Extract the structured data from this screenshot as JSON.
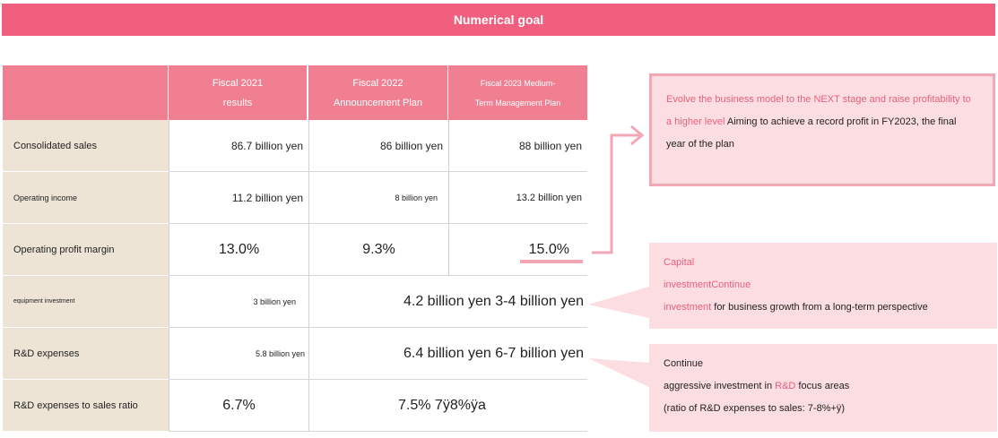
{
  "banner": {
    "title": "Numerical goal"
  },
  "table": {
    "headers": [
      {
        "line1": "Fiscal 2021",
        "line2": "results"
      },
      {
        "line1": "Fiscal 2022",
        "line2": "Announcement Plan"
      },
      {
        "line1": "Fiscal 2023 Medium-",
        "line2": "Term Management Plan"
      }
    ],
    "rows": [
      {
        "label": "Consolidated sales",
        "v2021": "86.7 billion yen",
        "v2022": "86 billion yen",
        "v2023": "88 billion yen"
      },
      {
        "label": "Operating income",
        "v2021": "11.2 billion yen",
        "v2022": "8 billion yen",
        "v2023": "13.2 billion yen"
      },
      {
        "label": "Operating profit margin",
        "v2021": "13.0%",
        "v2022": "9.3%",
        "v2023": "15.0%"
      },
      {
        "label": "equipment investment",
        "v2021": "3 billion yen",
        "v2022_2023": "4.2 billion yen 3-4 billion yen"
      },
      {
        "label": "R&D expenses",
        "v2021": "5.8 billion yen",
        "v2022_2023": "6.4 billion yen 6-7 billion yen"
      },
      {
        "label": "R&D expenses to sales ratio",
        "v2021": "6.7%",
        "v2022_2023": "7.5% 7ÿ8%ÿa"
      }
    ]
  },
  "callouts": {
    "profit": {
      "highlight_1": "Evolve the business model to the NEXT stage and raise profitability to",
      "highlight_2": "a higher level",
      "text_1": " Aiming to achieve a record profit in FY2023, the final",
      "text_2": "year of the plan"
    },
    "capital": {
      "line1": "Capital",
      "line2": "investmentContinue",
      "line3_highlight": "investment",
      "line3_text": " for business growth from a long-term perspective"
    },
    "rnd": {
      "line1": "Continue",
      "line2_a": "aggressive investment in ",
      "line2_highlight": "R&D",
      "line2_b": " focus areas",
      "line3": " (ratio of R&D expenses to sales: 7-8%+ÿ)"
    }
  },
  "colors": {
    "banner": "#f0607e",
    "header": "#f07f92",
    "label_bg": "#ede4d6",
    "callout_bg": "#fbdde2",
    "highlight_text": "#e8627c"
  }
}
